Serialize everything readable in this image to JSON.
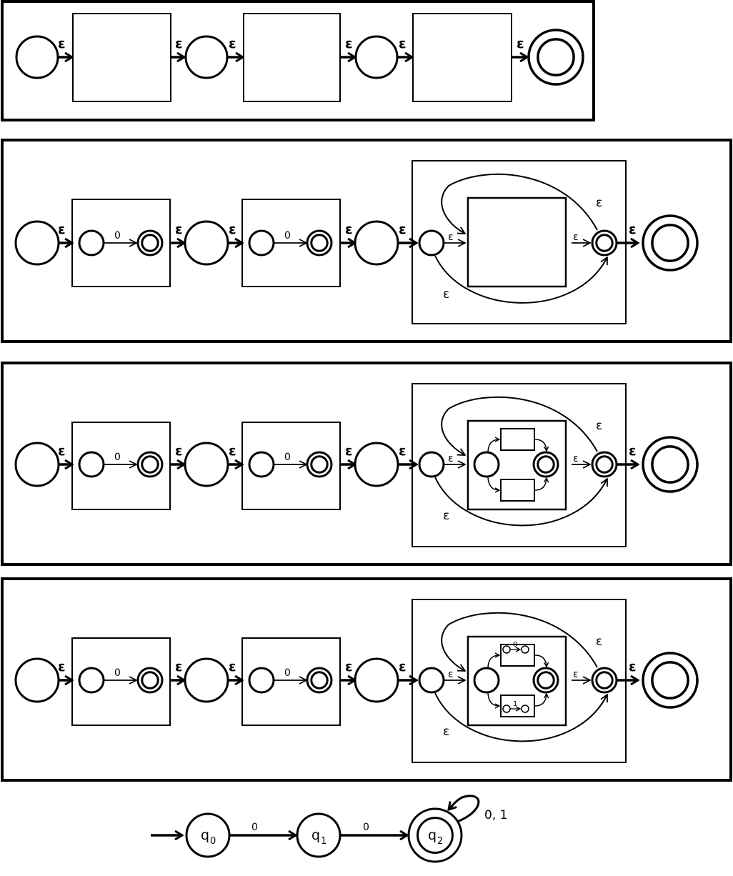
{
  "symbols": {
    "epsilon": "ε",
    "zero": "0",
    "one": "1",
    "zero_one": "0, 1"
  },
  "dfa": {
    "states": [
      {
        "name": "q",
        "sub": "0"
      },
      {
        "name": "q",
        "sub": "1"
      },
      {
        "name": "q",
        "sub": "2"
      }
    ],
    "transitions": [
      "0",
      "0"
    ],
    "self_loop": "0, 1"
  },
  "colors": {
    "stroke": "#000000",
    "background": "#ffffff"
  }
}
